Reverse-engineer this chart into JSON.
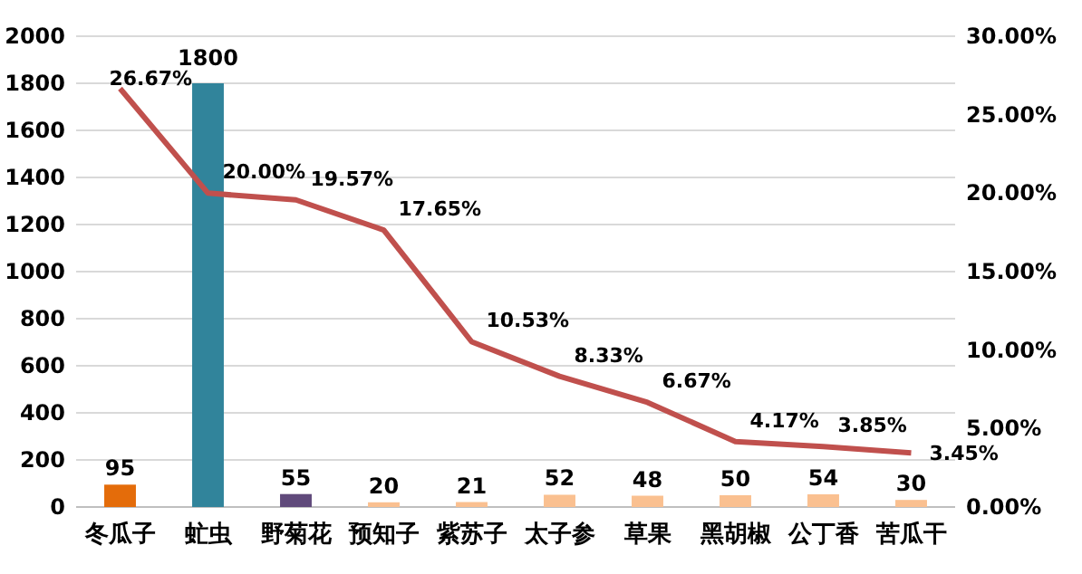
{
  "chart_data": {
    "type": "bar",
    "categories": [
      "冬瓜子",
      "虻虫",
      "野菊花",
      "预知子",
      "紫苏子",
      "太子参",
      "草果",
      "黑胡椒",
      "公丁香",
      "苦瓜干"
    ],
    "series": [
      {
        "colors": [
          "#e46c0a",
          "#31849b",
          "#604a7b",
          "#fac090",
          "#fac090",
          "#fac090",
          "#fac090",
          "#fac090",
          "#fac090",
          "#fac090"
        ],
        "values": [
          95,
          1800,
          55,
          20,
          21,
          52,
          48,
          50,
          54,
          30
        ]
      },
      {
        "type": "line",
        "axis": "y2",
        "color": "#c0504d",
        "values": [
          26.67,
          20.0,
          19.57,
          17.65,
          10.53,
          8.33,
          6.67,
          4.17,
          3.85,
          3.45
        ],
        "value_labels": [
          "26.67%",
          "20.00%",
          "19.57%",
          "17.65%",
          "10.53%",
          "8.33%",
          "6.67%",
          "4.17%",
          "3.85%",
          "3.45%"
        ]
      }
    ],
    "ylim": [
      0,
      2000
    ],
    "yticks": [
      0,
      200,
      400,
      600,
      800,
      1000,
      1200,
      1400,
      1600,
      1800,
      2000
    ],
    "y2lim": [
      0,
      30
    ],
    "y2ticks": [
      {
        "value": 0,
        "label": "0.00%"
      },
      {
        "value": 5,
        "label": "5.00%"
      },
      {
        "value": 10,
        "label": "10.00%"
      },
      {
        "value": 15,
        "label": "15.00%"
      },
      {
        "value": 20,
        "label": "20.00%"
      },
      {
        "value": 25,
        "label": "25.00%"
      },
      {
        "value": 30,
        "label": "30.00%"
      }
    ],
    "grid": "y",
    "data_labels": true,
    "marker": "none"
  }
}
